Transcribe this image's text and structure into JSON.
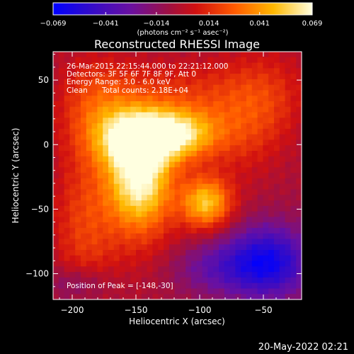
{
  "chart_data": {
    "type": "heatmap",
    "title": "Reconstructed RHESSI Image",
    "xlabel": "Heliocentric X (arcsec)",
    "ylabel": "Heliocentric Y (arcsec)",
    "xlim": [
      -215,
      -20
    ],
    "ylim": [
      -120,
      72
    ],
    "xticks": [
      -200,
      -150,
      -100,
      -50
    ],
    "yticks": [
      -100,
      -50,
      0,
      50
    ],
    "xtick_labels": [
      "−200",
      "−150",
      "−100",
      "−50"
    ],
    "ytick_labels": [
      "−100",
      "−50",
      "0",
      "50"
    ],
    "colorbar": {
      "min": -0.069,
      "max": 0.069,
      "ticks": [
        -0.069,
        -0.041,
        -0.014,
        0.014,
        0.041,
        0.069
      ],
      "tick_labels": [
        "−0.069",
        "−0.041",
        "−0.014",
        "0.014",
        "0.041",
        "0.069"
      ],
      "unit_label": "(photons cm⁻² s⁻¹ asec⁻²)"
    },
    "annotations": {
      "time_range": "26-Mar-2015 22:15:44.000 to 22:21:12.000",
      "detectors": "Detectors: 3F 5F 6F 7F 8F 9F, Att 0",
      "energy": "Energy Range: 3.0 - 6.0 keV",
      "method": "Clean",
      "total_counts": "Total counts: 2.18E+04",
      "peak": "Position of Peak = [-148,-30]"
    },
    "sources": [
      {
        "x": -147,
        "y": -30,
        "amp": 0.072,
        "sx": 18,
        "sy": 26
      },
      {
        "x": -150,
        "y": 5,
        "amp": 0.062,
        "sx": 22,
        "sy": 16
      },
      {
        "x": -115,
        "y": 8,
        "amp": 0.055,
        "sx": 22,
        "sy": 14
      },
      {
        "x": -95,
        "y": -45,
        "amp": 0.056,
        "sx": 14,
        "sy": 14
      },
      {
        "x": -180,
        "y": 30,
        "amp": 0.026,
        "sx": 22,
        "sy": 26
      },
      {
        "x": -120,
        "y": 40,
        "amp": 0.018,
        "sx": 36,
        "sy": 18
      },
      {
        "x": -190,
        "y": -60,
        "amp": 0.024,
        "sx": 18,
        "sy": 40
      },
      {
        "x": -65,
        "y": 20,
        "amp": 0.022,
        "sx": 22,
        "sy": 30
      },
      {
        "x": -40,
        "y": 40,
        "amp": 0.012,
        "sx": 20,
        "sy": 24
      },
      {
        "x": -130,
        "y": -90,
        "amp": 0.012,
        "sx": 30,
        "sy": 20
      }
    ],
    "background": -0.005,
    "negative_sources": [
      {
        "x": -45,
        "y": -90,
        "amp": -0.045,
        "sx": 22,
        "sy": 20
      },
      {
        "x": -85,
        "y": -95,
        "amp": -0.03,
        "sx": 35,
        "sy": 16
      },
      {
        "x": -195,
        "y": -108,
        "amp": -0.018,
        "sx": 18,
        "sy": 10
      }
    ],
    "grid": false,
    "legend": "none"
  },
  "footer": {
    "date": "20-May-2022 02:21"
  }
}
